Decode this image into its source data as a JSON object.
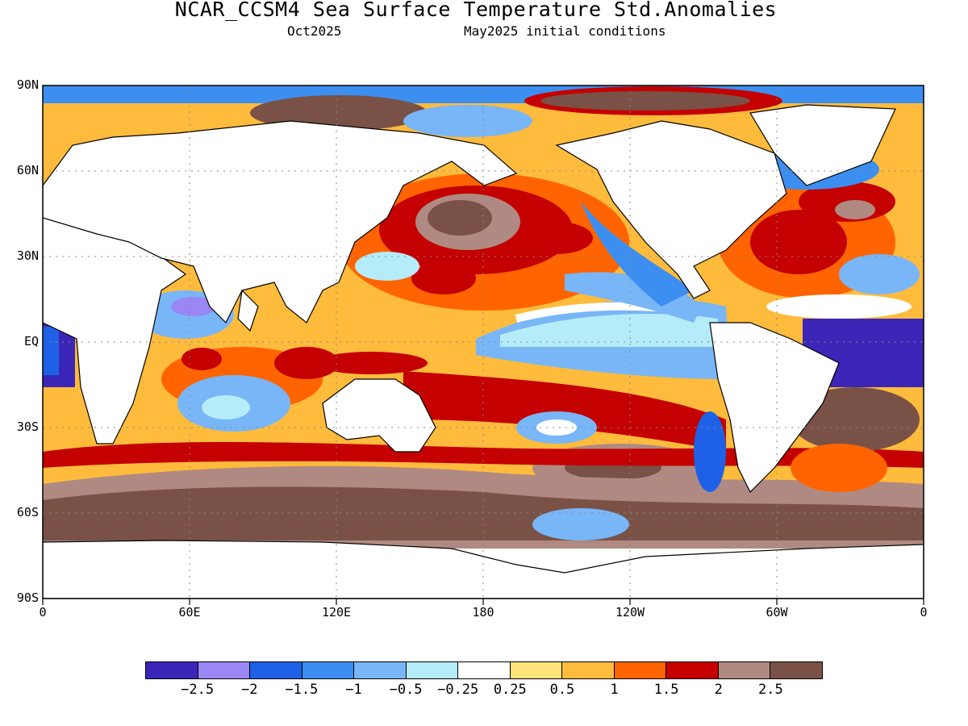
{
  "header": {
    "title": "NCAR_CCSM4 Sea Surface Temperature Std.Anomalies",
    "valid_month": "Oct2025",
    "init_text": "May2025 initial conditions"
  },
  "map": {
    "lat_labels": [
      "90N",
      "60N",
      "30N",
      "EQ",
      "30S",
      "60S",
      "90S"
    ],
    "lon_labels": [
      "0",
      "60E",
      "120E",
      "180",
      "120W",
      "60W",
      "0"
    ],
    "land_color": "#ffffff",
    "grid": "dotted"
  },
  "legend": {
    "colors": [
      "#3b26b8",
      "#9a87f5",
      "#1e61e6",
      "#3c8ff0",
      "#78b6f7",
      "#b4ecfa",
      "#ffffff",
      "#ffe47a",
      "#ffbb3c",
      "#ff6400",
      "#c40000",
      "#b08a82",
      "#7a5146"
    ],
    "labels": [
      "−2.5",
      "−2",
      "−1.5",
      "−1",
      "−0.5",
      "−0.25",
      "0.25",
      "0.5",
      "1",
      "1.5",
      "2",
      "2.5"
    ]
  }
}
